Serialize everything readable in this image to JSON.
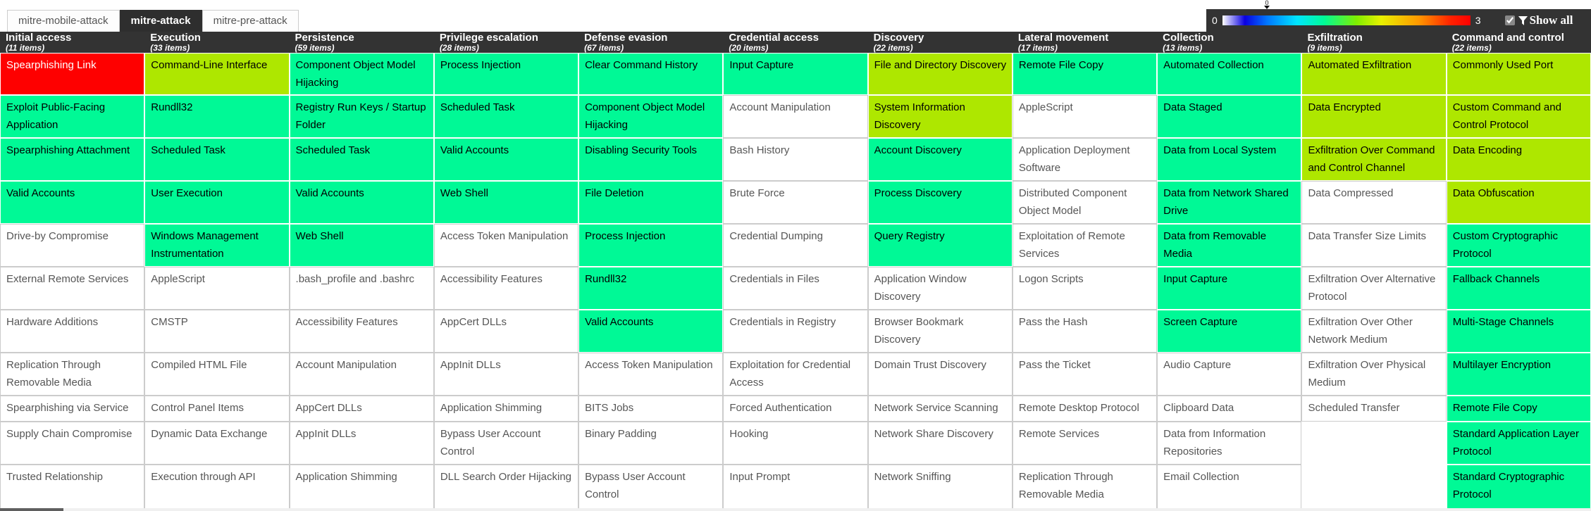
{
  "tabs": [
    {
      "label": "mitre-mobile-attack",
      "active": false
    },
    {
      "label": "mitre-attack",
      "active": true
    },
    {
      "label": "mitre-pre-attack",
      "active": false
    }
  ],
  "legend": {
    "min": "0",
    "max": "3",
    "slider_value": "0",
    "show_all_label": "Show all",
    "checkbox_checked": true
  },
  "palette": {
    "score1_green": "#00f996",
    "score2_lime": "#aee700",
    "score3_red": "#fe0000",
    "header_bg": "#333333",
    "active_tab_bg": "#2e2e2e"
  },
  "columns": [
    {
      "name": "Initial access",
      "items": "(11 items)",
      "cells": [
        {
          "text": "Spearphishing Link",
          "color": "red"
        },
        {
          "text": "Exploit Public-Facing Application",
          "color": "green"
        },
        {
          "text": "Spearphishing Attachment",
          "color": "green"
        },
        {
          "text": "Valid Accounts",
          "color": "green"
        },
        {
          "text": "Drive-by Compromise",
          "color": "white"
        },
        {
          "text": "External Remote Services",
          "color": "white"
        },
        {
          "text": "Hardware Additions",
          "color": "white"
        },
        {
          "text": "Replication Through Removable Media",
          "color": "white"
        },
        {
          "text": "Spearphishing via Service",
          "color": "white"
        },
        {
          "text": "Supply Chain Compromise",
          "color": "white"
        },
        {
          "text": "Trusted Relationship",
          "color": "white"
        }
      ]
    },
    {
      "name": "Execution",
      "items": "(33 items)",
      "cells": [
        {
          "text": "Command-Line Interface",
          "color": "lime"
        },
        {
          "text": "Rundll32",
          "color": "green"
        },
        {
          "text": "Scheduled Task",
          "color": "green"
        },
        {
          "text": "User Execution",
          "color": "green"
        },
        {
          "text": "Windows Management Instrumentation",
          "color": "green"
        },
        {
          "text": "AppleScript",
          "color": "white"
        },
        {
          "text": "CMSTP",
          "color": "white"
        },
        {
          "text": "Compiled HTML File",
          "color": "white"
        },
        {
          "text": "Control Panel Items",
          "color": "white"
        },
        {
          "text": "Dynamic Data Exchange",
          "color": "white"
        },
        {
          "text": "Execution through API",
          "color": "white"
        }
      ]
    },
    {
      "name": "Persistence",
      "items": "(59 items)",
      "cells": [
        {
          "text": "Component Object Model Hijacking",
          "color": "green"
        },
        {
          "text": "Registry Run Keys / Startup Folder",
          "color": "green"
        },
        {
          "text": "Scheduled Task",
          "color": "green"
        },
        {
          "text": "Valid Accounts",
          "color": "green"
        },
        {
          "text": "Web Shell",
          "color": "green"
        },
        {
          "text": ".bash_profile and .bashrc",
          "color": "white"
        },
        {
          "text": "Accessibility Features",
          "color": "white"
        },
        {
          "text": "Account Manipulation",
          "color": "white"
        },
        {
          "text": "AppCert DLLs",
          "color": "white"
        },
        {
          "text": "AppInit DLLs",
          "color": "white"
        },
        {
          "text": "Application Shimming",
          "color": "white"
        }
      ]
    },
    {
      "name": "Privilege escalation",
      "items": "(28 items)",
      "cells": [
        {
          "text": "Process Injection",
          "color": "green"
        },
        {
          "text": "Scheduled Task",
          "color": "green"
        },
        {
          "text": "Valid Accounts",
          "color": "green"
        },
        {
          "text": "Web Shell",
          "color": "green"
        },
        {
          "text": "Access Token Manipulation",
          "color": "white"
        },
        {
          "text": "Accessibility Features",
          "color": "white"
        },
        {
          "text": "AppCert DLLs",
          "color": "white"
        },
        {
          "text": "AppInit DLLs",
          "color": "white"
        },
        {
          "text": "Application Shimming",
          "color": "white"
        },
        {
          "text": "Bypass User Account Control",
          "color": "white"
        },
        {
          "text": "DLL Search Order Hijacking",
          "color": "white"
        }
      ]
    },
    {
      "name": "Defense evasion",
      "items": "(67 items)",
      "cells": [
        {
          "text": "Clear Command History",
          "color": "green"
        },
        {
          "text": "Component Object Model Hijacking",
          "color": "green"
        },
        {
          "text": "Disabling Security Tools",
          "color": "green"
        },
        {
          "text": "File Deletion",
          "color": "green"
        },
        {
          "text": "Process Injection",
          "color": "green"
        },
        {
          "text": "Rundll32",
          "color": "green"
        },
        {
          "text": "Valid Accounts",
          "color": "green"
        },
        {
          "text": "Access Token Manipulation",
          "color": "white"
        },
        {
          "text": "BITS Jobs",
          "color": "white"
        },
        {
          "text": "Binary Padding",
          "color": "white"
        },
        {
          "text": "Bypass User Account Control",
          "color": "white"
        }
      ]
    },
    {
      "name": "Credential access",
      "items": "(20 items)",
      "cells": [
        {
          "text": "Input Capture",
          "color": "green"
        },
        {
          "text": "Account Manipulation",
          "color": "white"
        },
        {
          "text": "Bash History",
          "color": "white"
        },
        {
          "text": "Brute Force",
          "color": "white"
        },
        {
          "text": "Credential Dumping",
          "color": "white"
        },
        {
          "text": "Credentials in Files",
          "color": "white"
        },
        {
          "text": "Credentials in Registry",
          "color": "white"
        },
        {
          "text": "Exploitation for Credential Access",
          "color": "white"
        },
        {
          "text": "Forced Authentication",
          "color": "white"
        },
        {
          "text": "Hooking",
          "color": "white"
        },
        {
          "text": "Input Prompt",
          "color": "white"
        }
      ]
    },
    {
      "name": "Discovery",
      "items": "(22 items)",
      "cells": [
        {
          "text": "File and Directory Discovery",
          "color": "lime"
        },
        {
          "text": "System Information Discovery",
          "color": "lime"
        },
        {
          "text": "Account Discovery",
          "color": "green"
        },
        {
          "text": "Process Discovery",
          "color": "green"
        },
        {
          "text": "Query Registry",
          "color": "green"
        },
        {
          "text": "Application Window Discovery",
          "color": "white"
        },
        {
          "text": "Browser Bookmark Discovery",
          "color": "white"
        },
        {
          "text": "Domain Trust Discovery",
          "color": "white"
        },
        {
          "text": "Network Service Scanning",
          "color": "white"
        },
        {
          "text": "Network Share Discovery",
          "color": "white"
        },
        {
          "text": "Network Sniffing",
          "color": "white"
        }
      ]
    },
    {
      "name": "Lateral movement",
      "items": "(17 items)",
      "cells": [
        {
          "text": "Remote File Copy",
          "color": "green"
        },
        {
          "text": "AppleScript",
          "color": "white"
        },
        {
          "text": "Application Deployment Software",
          "color": "white"
        },
        {
          "text": "Distributed Component Object Model",
          "color": "white"
        },
        {
          "text": "Exploitation of Remote Services",
          "color": "white"
        },
        {
          "text": "Logon Scripts",
          "color": "white"
        },
        {
          "text": "Pass the Hash",
          "color": "white"
        },
        {
          "text": "Pass the Ticket",
          "color": "white"
        },
        {
          "text": "Remote Desktop Protocol",
          "color": "white"
        },
        {
          "text": "Remote Services",
          "color": "white"
        },
        {
          "text": "Replication Through Removable Media",
          "color": "white"
        }
      ]
    },
    {
      "name": "Collection",
      "items": "(13 items)",
      "cells": [
        {
          "text": "Automated Collection",
          "color": "green"
        },
        {
          "text": "Data Staged",
          "color": "green"
        },
        {
          "text": "Data from Local System",
          "color": "green"
        },
        {
          "text": "Data from Network Shared Drive",
          "color": "green"
        },
        {
          "text": "Data from Removable Media",
          "color": "green"
        },
        {
          "text": "Input Capture",
          "color": "green"
        },
        {
          "text": "Screen Capture",
          "color": "green"
        },
        {
          "text": "Audio Capture",
          "color": "white"
        },
        {
          "text": "Clipboard Data",
          "color": "white"
        },
        {
          "text": "Data from Information Repositories",
          "color": "white"
        },
        {
          "text": "Email Collection",
          "color": "white"
        }
      ]
    },
    {
      "name": "Exfiltration",
      "items": "(9 items)",
      "cells": [
        {
          "text": "Automated Exfiltration",
          "color": "lime"
        },
        {
          "text": "Data Encrypted",
          "color": "lime"
        },
        {
          "text": "Exfiltration Over Command and Control Channel",
          "color": "lime"
        },
        {
          "text": "Data Compressed",
          "color": "white"
        },
        {
          "text": "Data Transfer Size Limits",
          "color": "white"
        },
        {
          "text": "Exfiltration Over Alternative Protocol",
          "color": "white"
        },
        {
          "text": "Exfiltration Over Other Network Medium",
          "color": "white"
        },
        {
          "text": "Exfiltration Over Physical Medium",
          "color": "white"
        },
        {
          "text": "Scheduled Transfer",
          "color": "white"
        },
        {
          "text": "",
          "color": "empty"
        },
        {
          "text": "",
          "color": "empty"
        }
      ]
    },
    {
      "name": "Command and control",
      "items": "(22 items)",
      "cells": [
        {
          "text": "Commonly Used Port",
          "color": "lime"
        },
        {
          "text": "Custom Command and Control Protocol",
          "color": "lime"
        },
        {
          "text": "Data Encoding",
          "color": "lime"
        },
        {
          "text": "Data Obfuscation",
          "color": "lime"
        },
        {
          "text": "Custom Cryptographic Protocol",
          "color": "green"
        },
        {
          "text": "Fallback Channels",
          "color": "green"
        },
        {
          "text": "Multi-Stage Channels",
          "color": "green"
        },
        {
          "text": "Multilayer Encryption",
          "color": "green"
        },
        {
          "text": "Remote File Copy",
          "color": "green"
        },
        {
          "text": "Standard Application Layer Protocol",
          "color": "green"
        },
        {
          "text": "Standard Cryptographic Protocol",
          "color": "green"
        }
      ]
    }
  ]
}
